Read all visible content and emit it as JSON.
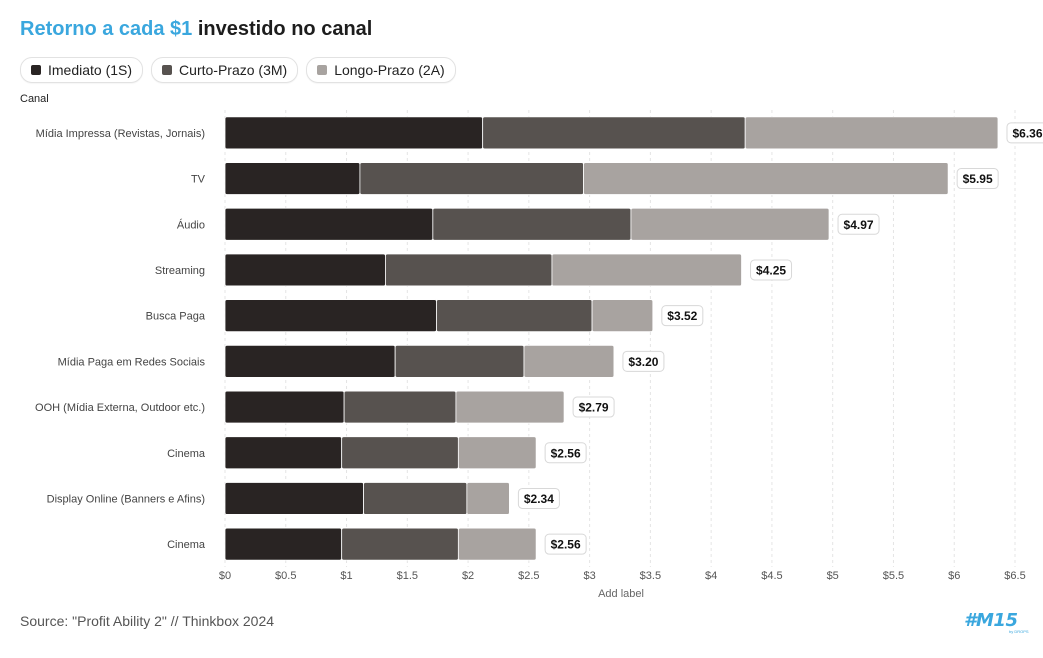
{
  "title": {
    "accent": "Retorno a cada $1",
    "rest": " investido no canal"
  },
  "legend": [
    {
      "label": "Imediato (1S)",
      "color": "#292423"
    },
    {
      "label": "Curto-Prazo (3M)",
      "color": "#57524f"
    },
    {
      "label": "Longo-Prazo (2A)",
      "color": "#a8a3a0"
    }
  ],
  "y_axis_caption": "Canal",
  "source": "Source: \"Profit Ability 2\" // Thinkbox 2024",
  "logo": {
    "text": "#M15",
    "sub": "by DROPS"
  },
  "chart_data": {
    "type": "bar",
    "orientation": "horizontal",
    "stacked": true,
    "title": "Retorno a cada $1 investido no canal",
    "xlabel": "Add label",
    "ylabel": "Canal",
    "xlim": [
      0,
      6.5
    ],
    "x_ticks": [
      0,
      0.5,
      1,
      1.5,
      2,
      2.5,
      3,
      3.5,
      4,
      4.5,
      5,
      5.5,
      6,
      6.5
    ],
    "x_tick_labels": [
      "$0",
      "$0.5",
      "$1",
      "$1.5",
      "$2",
      "$2.5",
      "$3",
      "$3.5",
      "$4",
      "$4.5",
      "$5",
      "$5.5",
      "$6",
      "$6.5"
    ],
    "categories": [
      "Mídia Impressa (Revistas, Jornais)",
      "TV",
      "Áudio",
      "Streaming",
      "Busca Paga",
      "Mídia Paga em Redes Sociais",
      "OOH (Mídia Externa, Outdoor etc.)",
      "Cinema",
      "Display Online (Banners e Afins)",
      "Cinema"
    ],
    "series": [
      {
        "name": "Imediato (1S)",
        "color": "#292423",
        "values": [
          2.12,
          1.11,
          1.71,
          1.32,
          1.74,
          1.4,
          0.98,
          0.96,
          1.14,
          0.96
        ]
      },
      {
        "name": "Curto-Prazo (3M)",
        "color": "#57524f",
        "values": [
          2.16,
          1.84,
          1.63,
          1.37,
          1.28,
          1.06,
          0.92,
          0.96,
          0.85,
          0.96
        ]
      },
      {
        "name": "Longo-Prazo (2A)",
        "color": "#a8a3a0",
        "values": [
          2.08,
          3.0,
          1.63,
          1.56,
          0.5,
          0.74,
          0.89,
          0.64,
          0.35,
          0.64
        ]
      }
    ],
    "totals": [
      "$6.36",
      "$5.95",
      "$4.97",
      "$4.25",
      "$3.52",
      "$3.20",
      "$2.79",
      "$2.56",
      "$2.34",
      "$2.56"
    ],
    "grid": true,
    "legend": "top-left"
  }
}
